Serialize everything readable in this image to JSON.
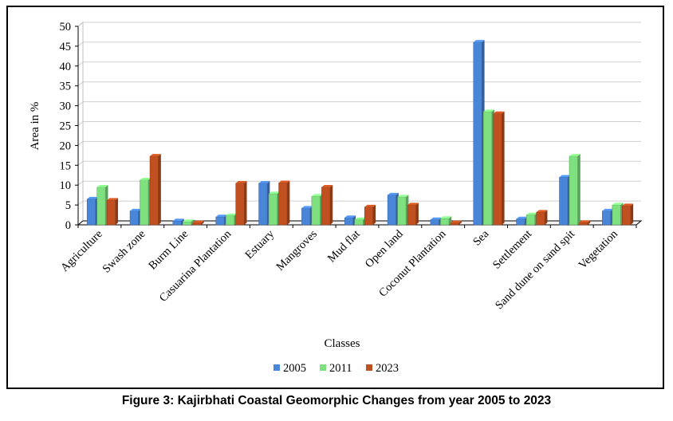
{
  "caption": "Figure 3: Kajirbhati Coastal Geomorphic Changes from year 2005 to 2023",
  "chart_data": {
    "type": "bar",
    "title": "",
    "xlabel": "Classes",
    "ylabel": "Area in %",
    "ylim": [
      0,
      50
    ],
    "yticks": [
      0,
      5,
      10,
      15,
      20,
      25,
      30,
      35,
      40,
      45,
      50
    ],
    "grid": true,
    "legend_position": "bottom",
    "categories": [
      "Agriculture",
      "Swash zone",
      "Burm Line",
      "Casuarina Plantation",
      "Estuary",
      "Mangroves",
      "Mud flat",
      "Open land",
      "Coconut Plantation",
      "Sea",
      "Settlement",
      "Sand dune on sand spit",
      "Vegetation"
    ],
    "series": [
      {
        "name": "2005",
        "color": "#4a86d8",
        "values": [
          6.5,
          3.5,
          1.0,
          2.0,
          10.5,
          4.2,
          1.8,
          7.5,
          1.3,
          46.0,
          1.5,
          12.0,
          3.5
        ]
      },
      {
        "name": "2011",
        "color": "#7ee07e",
        "values": [
          9.5,
          11.3,
          0.8,
          2.3,
          7.8,
          7.2,
          1.3,
          7.0,
          1.6,
          28.5,
          2.5,
          17.3,
          5.0
        ]
      },
      {
        "name": "2023",
        "color": "#c0501f",
        "values": [
          6.2,
          17.3,
          0.5,
          10.5,
          10.6,
          9.5,
          4.5,
          5.0,
          0.5,
          28.0,
          3.2,
          0.6,
          4.8
        ]
      }
    ]
  }
}
